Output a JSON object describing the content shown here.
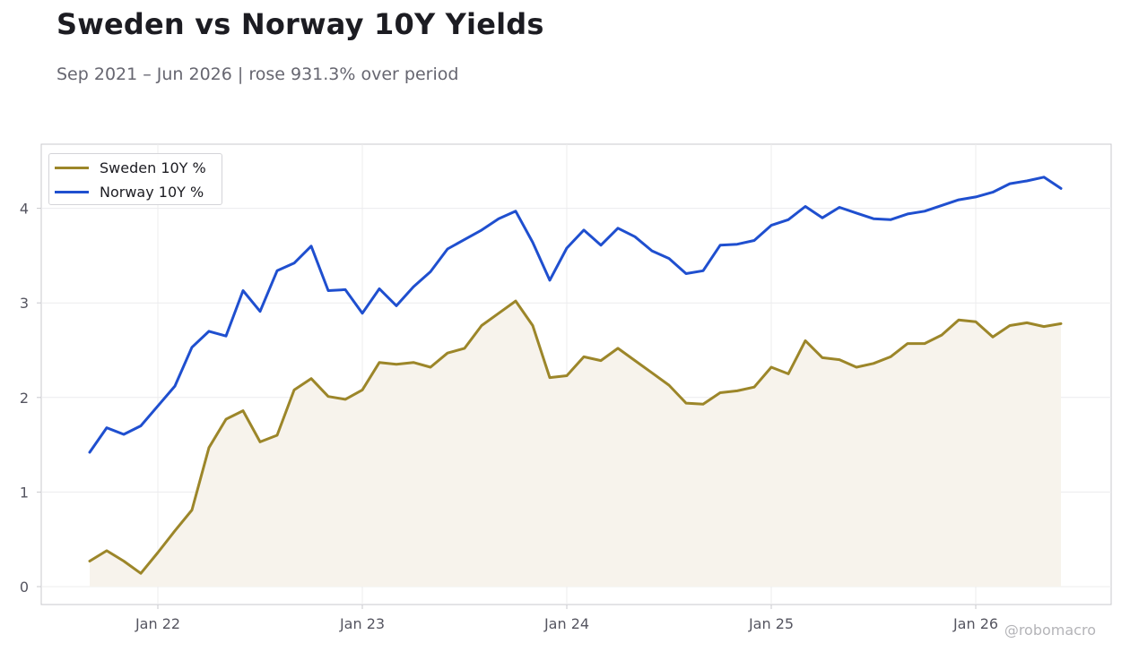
{
  "header": {
    "title": "Sweden vs Norway 10Y Yields",
    "subtitle": "Sep 2021 – Jun 2026 | rose 931.3% over period"
  },
  "watermark": "@robomacro",
  "colors": {
    "sweden": "#9c8629",
    "sweden_fill": "#f7f3ec",
    "norway": "#1f4fcf",
    "grid": "#ececee",
    "axis": "#c8c8cc",
    "tick_text": "#555560"
  },
  "chart_data": {
    "type": "line",
    "title": "Sweden vs Norway 10Y Yields",
    "xlabel": "",
    "ylabel": "",
    "x": [
      "2021-09",
      "2021-10",
      "2021-11",
      "2021-12",
      "2022-01",
      "2022-02",
      "2022-03",
      "2022-04",
      "2022-05",
      "2022-06",
      "2022-07",
      "2022-08",
      "2022-09",
      "2022-10",
      "2022-11",
      "2022-12",
      "2023-01",
      "2023-02",
      "2023-03",
      "2023-04",
      "2023-05",
      "2023-06",
      "2023-07",
      "2023-08",
      "2023-09",
      "2023-10",
      "2023-11",
      "2023-12",
      "2024-01",
      "2024-02",
      "2024-03",
      "2024-04",
      "2024-05",
      "2024-06",
      "2024-07",
      "2024-08",
      "2024-09",
      "2024-10",
      "2024-11",
      "2024-12",
      "2025-01",
      "2025-02",
      "2025-03",
      "2025-04",
      "2025-05",
      "2025-06",
      "2025-07",
      "2025-08",
      "2025-09",
      "2025-10",
      "2025-11",
      "2025-12",
      "2026-01",
      "2026-02",
      "2026-03",
      "2026-04",
      "2026-05",
      "2026-06"
    ],
    "x_ticks": [
      "Jan 22",
      "Jan 23",
      "Jan 24",
      "Jan 25",
      "Jan 26"
    ],
    "x_tick_dates": [
      "2022-01",
      "2023-01",
      "2024-01",
      "2025-01",
      "2026-01"
    ],
    "y_ticks": [
      "0",
      "1",
      "2",
      "3",
      "4"
    ],
    "ylim": [
      -0.2,
      4.6
    ],
    "grid": true,
    "legend_position": "top-left",
    "series": [
      {
        "name": "Sweden 10Y %",
        "fill_to_zero": true,
        "values": [
          0.27,
          0.38,
          0.27,
          0.14,
          0.36,
          0.59,
          0.81,
          1.47,
          1.77,
          1.86,
          1.53,
          1.6,
          2.08,
          2.2,
          2.01,
          1.98,
          2.08,
          2.37,
          2.35,
          2.37,
          2.32,
          2.47,
          2.52,
          2.76,
          2.89,
          3.02,
          2.76,
          2.21,
          2.23,
          2.43,
          2.39,
          2.52,
          2.39,
          2.26,
          2.13,
          1.94,
          1.93,
          2.05,
          2.07,
          2.11,
          2.32,
          2.25,
          2.6,
          2.42,
          2.4,
          2.32,
          2.36,
          2.43,
          2.57,
          2.57,
          2.66,
          2.82,
          2.8,
          2.64,
          2.76,
          2.79,
          2.75,
          2.78
        ]
      },
      {
        "name": "Norway 10Y %",
        "fill_to_zero": false,
        "values": [
          1.42,
          1.68,
          1.61,
          1.7,
          1.91,
          2.12,
          2.53,
          2.7,
          2.65,
          3.13,
          2.91,
          3.34,
          3.42,
          3.6,
          3.13,
          3.14,
          2.89,
          3.15,
          2.97,
          3.17,
          3.33,
          3.57,
          3.67,
          3.77,
          3.89,
          3.97,
          3.64,
          3.24,
          3.58,
          3.77,
          3.61,
          3.79,
          3.7,
          3.55,
          3.47,
          3.31,
          3.34,
          3.61,
          3.62,
          3.66,
          3.82,
          3.88,
          4.02,
          3.9,
          4.01,
          3.95,
          3.89,
          3.88,
          3.94,
          3.97,
          4.03,
          4.09,
          4.12,
          4.17,
          4.26,
          4.29,
          4.33,
          4.21
        ]
      }
    ]
  }
}
